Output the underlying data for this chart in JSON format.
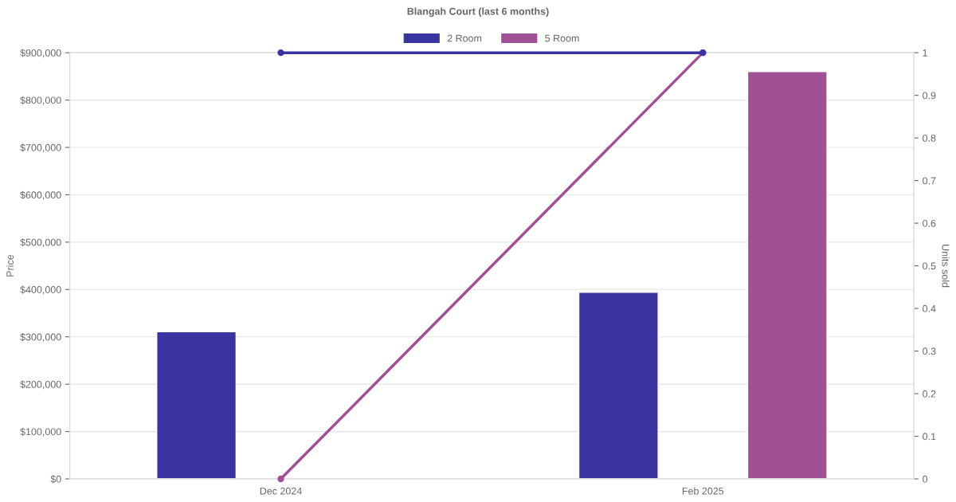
{
  "chart_data": {
    "type": "bar",
    "title": "Blangah Court (last 6 months)",
    "ylabel": "Price",
    "y2label": "Units sold",
    "categories": [
      "Dec 2024",
      "Feb 2025"
    ],
    "series": [
      {
        "name": "2 Room",
        "color": "#3a34a0",
        "values": [
          311000,
          394000
        ]
      },
      {
        "name": "5 Room",
        "color": "#a05094",
        "values": [
          null,
          860000
        ]
      },
      {
        "type": "line",
        "axis": "y2",
        "color": "#3a34a0",
        "values": [
          1,
          1
        ]
      },
      {
        "type": "line",
        "axis": "y2",
        "color": "#a05094",
        "values": [
          0,
          1
        ]
      }
    ],
    "ylim": [
      0,
      900000
    ],
    "yticks": [
      {
        "value": 0,
        "label": "$0"
      },
      {
        "value": 100000,
        "label": "$100,000"
      },
      {
        "value": 200000,
        "label": "$200,000"
      },
      {
        "value": 300000,
        "label": "$300,000"
      },
      {
        "value": 400000,
        "label": "$400,000"
      },
      {
        "value": 500000,
        "label": "$500,000"
      },
      {
        "value": 600000,
        "label": "$600,000"
      },
      {
        "value": 700000,
        "label": "$700,000"
      },
      {
        "value": 800000,
        "label": "$800,000"
      },
      {
        "value": 900000,
        "label": "$900,000"
      }
    ],
    "y2lim": [
      0,
      1
    ],
    "y2ticks": [
      0,
      0.1,
      0.2,
      0.3,
      0.4,
      0.5,
      0.6,
      0.7,
      0.8,
      0.9,
      1
    ],
    "grid": "y",
    "legend": "top",
    "marker": "circle"
  }
}
